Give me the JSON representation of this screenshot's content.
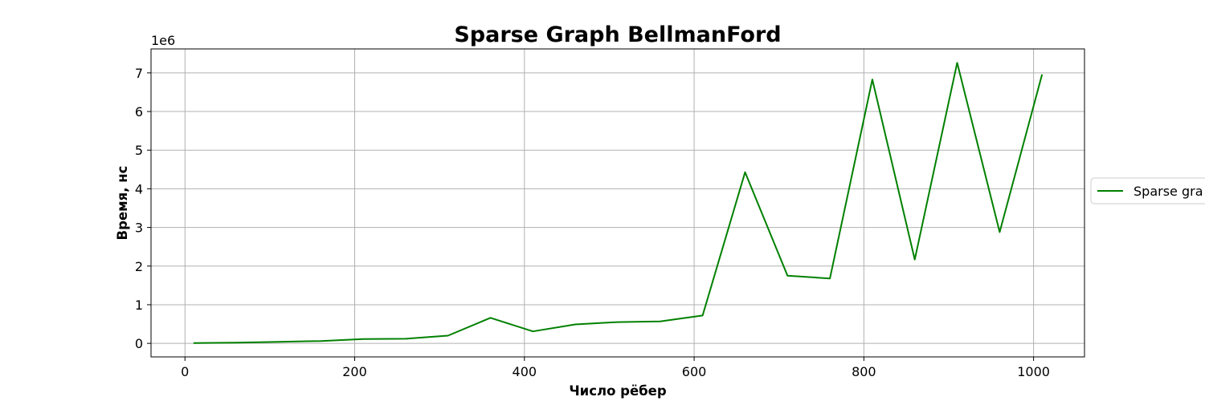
{
  "chart_data": {
    "type": "line",
    "title": "Sparse Graph BellmanFord",
    "xlabel": "Число рёбер",
    "ylabel": "Время, нс",
    "y_scale_label": "1e6",
    "xlim": [
      -40,
      1060
    ],
    "ylim": [
      -0.35,
      7.62
    ],
    "xticks": [
      0,
      200,
      400,
      600,
      800,
      1000
    ],
    "yticks": [
      0,
      1,
      2,
      3,
      4,
      5,
      6,
      7
    ],
    "grid": true,
    "legend_position": "center-right, outside axes (clipped by image edge)",
    "series": [
      {
        "name": "Sparse gra",
        "color": "#008000",
        "x": [
          10,
          60,
          110,
          160,
          210,
          260,
          310,
          360,
          410,
          460,
          510,
          560,
          610,
          660,
          710,
          760,
          810,
          860,
          910,
          960,
          1010
        ],
        "y": [
          0.01,
          0.02,
          0.04,
          0.06,
          0.11,
          0.12,
          0.2,
          0.66,
          0.31,
          0.49,
          0.55,
          0.57,
          0.72,
          4.43,
          1.75,
          1.68,
          6.83,
          2.17,
          7.26,
          2.88,
          6.96
        ]
      }
    ]
  }
}
